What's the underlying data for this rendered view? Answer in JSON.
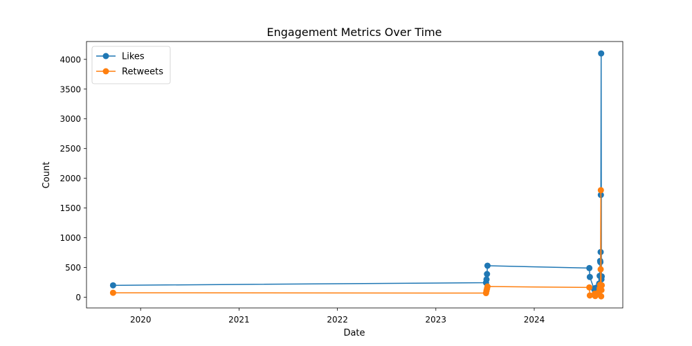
{
  "chart_data": {
    "type": "line",
    "title": "Engagement Metrics Over Time",
    "xlabel": "Date",
    "ylabel": "Count",
    "xlim": [
      2019.45,
      2024.9
    ],
    "ylim": [
      -180,
      4300
    ],
    "x_ticks": [
      {
        "value": 2020,
        "label": "2020"
      },
      {
        "value": 2021,
        "label": "2021"
      },
      {
        "value": 2022,
        "label": "2022"
      },
      {
        "value": 2023,
        "label": "2023"
      },
      {
        "value": 2024,
        "label": "2024"
      }
    ],
    "y_ticks": [
      {
        "value": 0,
        "label": "0"
      },
      {
        "value": 500,
        "label": "500"
      },
      {
        "value": 1000,
        "label": "1000"
      },
      {
        "value": 1500,
        "label": "1500"
      },
      {
        "value": 2000,
        "label": "2000"
      },
      {
        "value": 2500,
        "label": "2500"
      },
      {
        "value": 3000,
        "label": "3000"
      },
      {
        "value": 3500,
        "label": "3500"
      },
      {
        "value": 4000,
        "label": "4000"
      }
    ],
    "legend_position": "top-left",
    "grid": false,
    "series": [
      {
        "name": "Likes",
        "color": "#1f77b4",
        "points": [
          [
            2019.72,
            200
          ],
          [
            2023.51,
            245
          ],
          [
            2023.515,
            300
          ],
          [
            2023.52,
            390
          ],
          [
            2023.525,
            530
          ],
          [
            2024.56,
            490
          ],
          [
            2024.565,
            340
          ],
          [
            2024.61,
            130
          ],
          [
            2024.615,
            150
          ],
          [
            2024.62,
            70
          ],
          [
            2024.63,
            160
          ],
          [
            2024.66,
            230
          ],
          [
            2024.665,
            360
          ],
          [
            2024.67,
            610
          ],
          [
            2024.672,
            590
          ],
          [
            2024.675,
            760
          ],
          [
            2024.677,
            1720
          ],
          [
            2024.68,
            4100
          ],
          [
            2024.683,
            300
          ],
          [
            2024.686,
            350
          ]
        ]
      },
      {
        "name": "Retweets",
        "color": "#ff7f0e",
        "points": [
          [
            2019.72,
            75
          ],
          [
            2023.51,
            70
          ],
          [
            2023.515,
            110
          ],
          [
            2023.52,
            145
          ],
          [
            2023.525,
            180
          ],
          [
            2024.56,
            165
          ],
          [
            2024.565,
            30
          ],
          [
            2024.61,
            40
          ],
          [
            2024.615,
            60
          ],
          [
            2024.62,
            20
          ],
          [
            2024.63,
            55
          ],
          [
            2024.66,
            100
          ],
          [
            2024.665,
            150
          ],
          [
            2024.67,
            210
          ],
          [
            2024.672,
            160
          ],
          [
            2024.675,
            470
          ],
          [
            2024.677,
            1800
          ],
          [
            2024.68,
            15
          ],
          [
            2024.683,
            120
          ],
          [
            2024.686,
            200
          ]
        ]
      }
    ]
  }
}
